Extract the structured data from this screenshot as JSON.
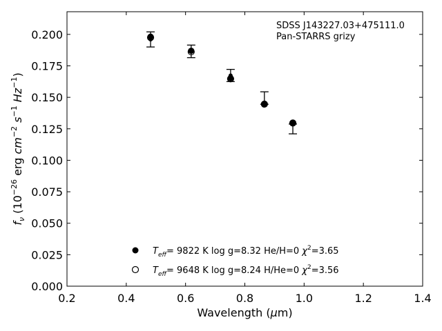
{
  "chart_data": {
    "type": "scatter",
    "title": "",
    "xlabel": {
      "main": "Wavelength (",
      "greek": "μ",
      "rest": "m)"
    },
    "ylabel": {
      "f": "f",
      "fsub": "ν",
      "p1": " (10",
      "e1": "−26",
      "p2": " erg ",
      "cm": "cm",
      "e2": "−2",
      "s": "s",
      "e3": "−1",
      "hz": "Hz",
      "e4": "−1",
      "close": ")"
    },
    "xlim": [
      0.2,
      1.4
    ],
    "ylim": [
      0.0,
      0.218
    ],
    "xticks": [
      0.2,
      0.4,
      0.6,
      0.8,
      1.0,
      1.2,
      1.4
    ],
    "yticks": [
      0.0,
      0.025,
      0.05,
      0.075,
      0.1,
      0.125,
      0.15,
      0.175,
      0.2
    ],
    "xtick_labels": [
      "0.2",
      "0.4",
      "0.6",
      "0.8",
      "1.0",
      "1.2",
      "1.4"
    ],
    "ytick_labels": [
      "0.000",
      "0.025",
      "0.050",
      "0.075",
      "0.100",
      "0.125",
      "0.150",
      "0.175",
      "0.200"
    ],
    "grid": false,
    "annotation": [
      "SDSS J143227.03+475111.0",
      "Pan-STARRS grizy"
    ],
    "observed": {
      "x": [
        0.482,
        0.619,
        0.752,
        0.866,
        0.962
      ],
      "y": [
        0.196,
        0.1865,
        0.1673,
        0.1454,
        0.1288
      ],
      "err_lo": [
        0.19,
        0.1815,
        0.1625,
        0.1445,
        0.121
      ],
      "err_hi": [
        0.202,
        0.1915,
        0.1722,
        0.1544,
        0.1288
      ]
    },
    "series": [
      {
        "marker": "filled",
        "teff_sym": "T",
        "teff_sub": "eff",
        "params": "=  9822 K  log g=8.32  He/H=0  ",
        "chi": "χ",
        "chi_exp": "2",
        "chi_val": "=3.65",
        "y": [
          0.1982,
          0.187,
          0.1652,
          0.1448,
          0.1294
        ]
      },
      {
        "marker": "open",
        "teff_sym": "T",
        "teff_sub": "eff",
        "params": "=  9648 K  log g=8.24  H/He=0  ",
        "chi": "χ",
        "chi_exp": "2",
        "chi_val": "=3.56",
        "y": [
          0.1975,
          0.1862,
          0.1647,
          0.1446,
          0.1296
        ]
      }
    ]
  }
}
